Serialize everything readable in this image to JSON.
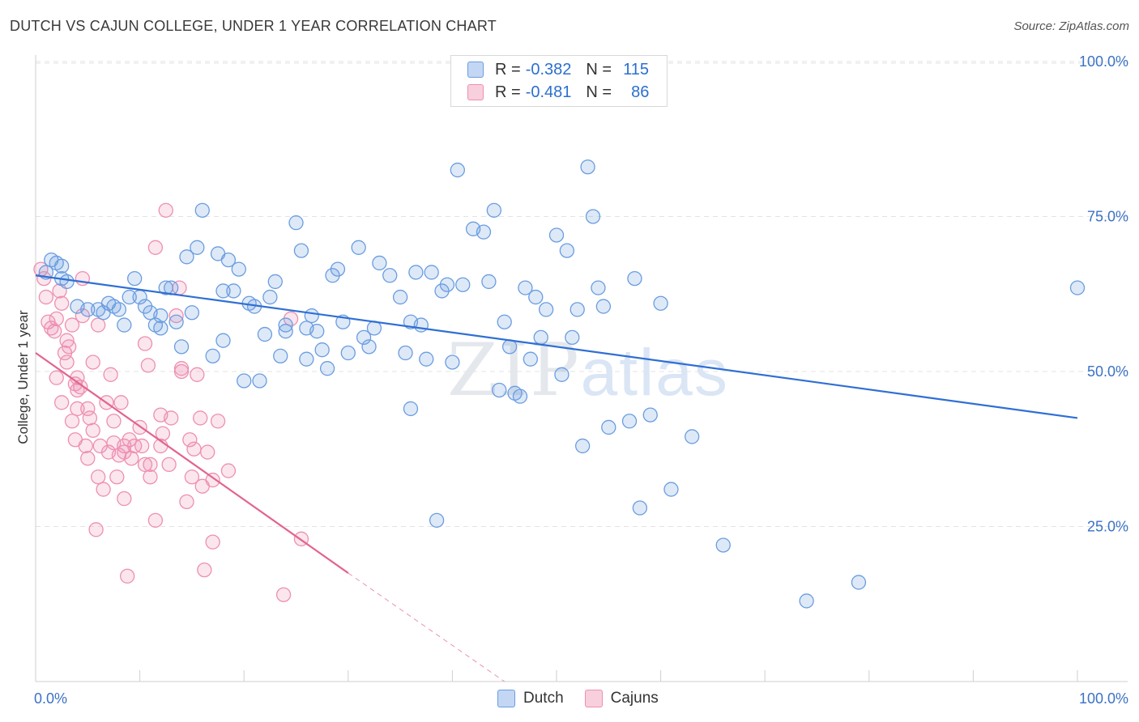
{
  "title": "DUTCH VS CAJUN COLLEGE, UNDER 1 YEAR CORRELATION CHART",
  "source": "Source: ZipAtlas.com",
  "watermark": {
    "zip": "ZIP",
    "atlas": "atlas"
  },
  "colors": {
    "dutch": "#6a9de0",
    "dutch_line": "#2f6fd4",
    "cajun": "#ee8fb0",
    "cajun_line": "#e2648f",
    "grid": "#e3e3e3",
    "tick_label": "#3b72c6"
  },
  "legend": {
    "rows": [
      {
        "r_label": "R =",
        "r_value": "-0.382",
        "n_label": "N =",
        "n_value": "115"
      },
      {
        "r_label": "R =",
        "r_value": "-0.481",
        "n_label": "N =",
        "n_value": "86"
      }
    ]
  },
  "bottom_legend": [
    "Dutch",
    "Cajuns"
  ],
  "chart_data": {
    "type": "scatter",
    "title": "DUTCH VS CAJUN COLLEGE, UNDER 1 YEAR CORRELATION CHART",
    "xlabel": "",
    "ylabel": "College, Under 1 year",
    "xlim": [
      0,
      100
    ],
    "ylim": [
      0,
      105
    ],
    "x_tick_labels": [
      "0.0%",
      "100.0%"
    ],
    "y_ticks": [
      25,
      50,
      75,
      100
    ],
    "y_tick_labels": [
      "25.0%",
      "50.0%",
      "75.0%",
      "100.0%"
    ],
    "grid": true,
    "legend_position": "top-center",
    "series": [
      {
        "name": "Dutch",
        "r": -0.382,
        "n": 115,
        "trend": {
          "x": [
            0,
            100
          ],
          "y": [
            65.5,
            42.5
          ]
        },
        "points": [
          [
            1,
            66
          ],
          [
            1.5,
            68
          ],
          [
            2,
            67.5
          ],
          [
            2.5,
            67
          ],
          [
            3,
            64.5
          ],
          [
            4,
            60.5
          ],
          [
            5,
            60
          ],
          [
            6,
            60
          ],
          [
            7,
            61
          ],
          [
            7.5,
            60.5
          ],
          [
            8,
            60
          ],
          [
            8.5,
            57.5
          ],
          [
            9,
            62
          ],
          [
            9.5,
            65
          ],
          [
            10,
            62
          ],
          [
            10.5,
            60.5
          ],
          [
            11,
            59.5
          ],
          [
            11.5,
            57.5
          ],
          [
            12,
            59
          ],
          [
            12,
            57
          ],
          [
            12.5,
            63.5
          ],
          [
            13,
            63.5
          ],
          [
            14,
            54
          ],
          [
            14.5,
            68.5
          ],
          [
            15,
            59.5
          ],
          [
            15.5,
            70
          ],
          [
            16,
            76
          ],
          [
            17,
            52.5
          ],
          [
            17.5,
            69
          ],
          [
            18,
            63
          ],
          [
            18.5,
            68
          ],
          [
            19,
            63
          ],
          [
            19.5,
            66.5
          ],
          [
            20,
            48.5
          ],
          [
            20.5,
            61
          ],
          [
            21,
            60.5
          ],
          [
            21.5,
            48.5
          ],
          [
            22,
            56
          ],
          [
            22.5,
            62
          ],
          [
            23,
            64.5
          ],
          [
            23.5,
            52.5
          ],
          [
            24,
            57.5
          ],
          [
            24,
            56.5
          ],
          [
            25,
            74
          ],
          [
            25.5,
            69.5
          ],
          [
            26,
            57
          ],
          [
            26.5,
            59
          ],
          [
            27,
            56.5
          ],
          [
            27.5,
            53.5
          ],
          [
            28,
            50.5
          ],
          [
            28.5,
            65.5
          ],
          [
            29,
            66.5
          ],
          [
            29.5,
            58
          ],
          [
            30,
            53
          ],
          [
            31,
            70
          ],
          [
            31.5,
            55.5
          ],
          [
            32,
            54
          ],
          [
            32.5,
            57
          ],
          [
            33,
            67.5
          ],
          [
            34,
            65.5
          ],
          [
            35,
            62
          ],
          [
            35.5,
            53
          ],
          [
            36,
            44
          ],
          [
            36.5,
            66
          ],
          [
            37,
            57.5
          ],
          [
            37.5,
            52
          ],
          [
            38,
            66
          ],
          [
            38.5,
            26
          ],
          [
            39,
            63
          ],
          [
            40,
            51.5
          ],
          [
            39.5,
            64
          ],
          [
            40.5,
            82.5
          ],
          [
            41,
            64
          ],
          [
            42,
            73
          ],
          [
            43,
            72.5
          ],
          [
            44,
            76
          ],
          [
            43.5,
            64.5
          ],
          [
            44.5,
            47
          ],
          [
            45.5,
            54
          ],
          [
            46,
            46.5
          ],
          [
            46.5,
            46
          ],
          [
            47,
            63.5
          ],
          [
            47.5,
            52
          ],
          [
            48,
            62
          ],
          [
            48.5,
            55.5
          ],
          [
            49,
            60
          ],
          [
            50,
            72
          ],
          [
            50.5,
            49.5
          ],
          [
            51,
            69.5
          ],
          [
            51.5,
            55.5
          ],
          [
            52,
            60
          ],
          [
            52.5,
            38
          ],
          [
            53,
            83
          ],
          [
            53.5,
            75
          ],
          [
            54,
            63.5
          ],
          [
            54.5,
            60.5
          ],
          [
            55,
            41
          ],
          [
            57,
            42
          ],
          [
            57.5,
            65
          ],
          [
            58,
            28
          ],
          [
            59,
            43
          ],
          [
            60,
            61
          ],
          [
            61,
            31
          ],
          [
            63,
            39.5
          ],
          [
            66,
            22
          ],
          [
            74,
            13
          ],
          [
            79,
            16
          ],
          [
            100,
            63.5
          ],
          [
            2.5,
            65
          ],
          [
            6.5,
            59.5
          ],
          [
            13.5,
            58
          ],
          [
            18,
            55
          ],
          [
            26,
            52
          ],
          [
            36,
            58
          ],
          [
            45,
            58
          ]
        ]
      },
      {
        "name": "Cajuns",
        "r": -0.481,
        "n": 86,
        "trend": {
          "x": [
            0,
            30
          ],
          "y": [
            53,
            17.5
          ]
        },
        "trend_dashed": {
          "x": [
            30,
            45
          ],
          "y": [
            17.5,
            0
          ]
        },
        "points": [
          [
            0.5,
            66.5
          ],
          [
            0.8,
            65
          ],
          [
            1,
            62
          ],
          [
            1.2,
            58
          ],
          [
            1.5,
            57
          ],
          [
            1.8,
            56.5
          ],
          [
            2,
            49
          ],
          [
            2,
            58.5
          ],
          [
            2.3,
            63
          ],
          [
            2.5,
            61
          ],
          [
            2.5,
            45
          ],
          [
            2.8,
            53
          ],
          [
            3,
            51.5
          ],
          [
            3,
            55
          ],
          [
            3.2,
            54
          ],
          [
            3.5,
            42
          ],
          [
            3.5,
            57.5
          ],
          [
            3.8,
            39
          ],
          [
            4,
            47
          ],
          [
            4,
            44
          ],
          [
            4,
            49
          ],
          [
            4.3,
            47.5
          ],
          [
            4.5,
            59
          ],
          [
            4.5,
            65
          ],
          [
            4.8,
            38
          ],
          [
            5,
            44
          ],
          [
            5,
            36
          ],
          [
            5.2,
            42.5
          ],
          [
            5.5,
            40.5
          ],
          [
            5.5,
            51.5
          ],
          [
            5.8,
            24.5
          ],
          [
            6,
            57.5
          ],
          [
            6,
            33
          ],
          [
            6.2,
            38
          ],
          [
            6.5,
            31
          ],
          [
            6.8,
            45
          ],
          [
            7,
            37
          ],
          [
            7.2,
            49.5
          ],
          [
            7.5,
            42
          ],
          [
            7.8,
            33
          ],
          [
            8,
            36.5
          ],
          [
            8.2,
            45
          ],
          [
            8.5,
            38
          ],
          [
            8.5,
            29.5
          ],
          [
            8.8,
            17
          ],
          [
            9,
            39
          ],
          [
            9.2,
            36
          ],
          [
            9.5,
            38
          ],
          [
            10,
            41
          ],
          [
            10.2,
            38
          ],
          [
            10.5,
            54.5
          ],
          [
            10.8,
            51
          ],
          [
            11,
            35
          ],
          [
            11,
            33
          ],
          [
            11.5,
            26
          ],
          [
            11.5,
            70
          ],
          [
            12,
            38
          ],
          [
            12,
            43
          ],
          [
            12.2,
            40
          ],
          [
            12.5,
            76
          ],
          [
            12.8,
            35
          ],
          [
            13,
            42.5
          ],
          [
            13.5,
            59
          ],
          [
            13.8,
            63.5
          ],
          [
            14,
            50
          ],
          [
            14.5,
            29
          ],
          [
            14.8,
            39
          ],
          [
            15,
            33
          ],
          [
            15.2,
            37.5
          ],
          [
            15.5,
            49.5
          ],
          [
            15.8,
            42.5
          ],
          [
            16,
            31.5
          ],
          [
            16.2,
            18
          ],
          [
            16.5,
            37
          ],
          [
            17,
            22.5
          ],
          [
            17,
            32.5
          ],
          [
            17.5,
            42
          ],
          [
            18.5,
            34
          ],
          [
            23.8,
            14
          ],
          [
            24.5,
            58.5
          ],
          [
            25.5,
            23
          ],
          [
            3.8,
            48
          ],
          [
            7.5,
            38.5
          ],
          [
            10.5,
            35
          ],
          [
            14,
            50.5
          ],
          [
            8.5,
            37
          ]
        ]
      }
    ]
  }
}
